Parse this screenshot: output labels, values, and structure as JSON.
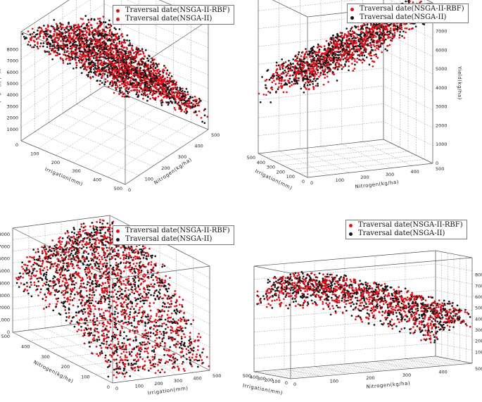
{
  "colors": {
    "rbf": "#e0101a",
    "nsga": "#151515",
    "grid": "#9a9a9a"
  },
  "legend": {
    "series_rbf": "Traversal date(NSGA-II-RBF)",
    "series_nsga": "Traversal date(NSGA-II)"
  },
  "chart_data": [
    {
      "type": "scatter",
      "panel": "top-left",
      "title": "",
      "zlabel": "Yield(kg/ha)",
      "xlabel": "Irrigation(mm)",
      "ylabel": "Nitrogen(kg/ha)",
      "zticks": [
        "1000",
        "2000",
        "3000",
        "4000",
        "5000",
        "6000",
        "7000",
        "8000"
      ],
      "zlim": [
        0,
        8500
      ],
      "xticks": [
        "500",
        "400",
        "300",
        "200",
        "100",
        "0"
      ],
      "yticks": [
        "0",
        "100",
        "200",
        "300",
        "400",
        "500"
      ],
      "series": [
        {
          "name": "Traversal date(NSGA-II-RBF)",
          "points": 1400
        },
        {
          "name": "Traversal date(NSGA-II)",
          "points": 1100
        }
      ]
    },
    {
      "type": "scatter",
      "panel": "top-right",
      "title": "",
      "zlabel": "Yield(kg/ha)",
      "xlabel": "Irrigation(mm)",
      "ylabel": "Nitrogen(kg/ha)",
      "zticks": [
        "0",
        "1000",
        "2000",
        "3000",
        "4000",
        "5000",
        "6000",
        "7000",
        "8000"
      ],
      "zlim": [
        0,
        8500
      ],
      "xticks": [
        "0",
        "100",
        "200",
        "300",
        "400",
        "500"
      ],
      "yticks": [
        "0",
        "100",
        "200",
        "300",
        "400",
        "500"
      ],
      "series": [
        {
          "name": "Traversal date(NSGA-II-RBF)",
          "points": 900
        },
        {
          "name": "Traversal date(NSGA-II)",
          "points": 700
        }
      ]
    },
    {
      "type": "scatter",
      "panel": "bottom-left",
      "title": "",
      "zlabel": "Yield(kg/ha)",
      "xlabel": "Nitrogen(kg/ha)",
      "ylabel": "Irrigation(mm)",
      "zticks": [
        "0",
        "1000",
        "2000",
        "3000",
        "4000",
        "5000",
        "6000",
        "7000",
        "8000"
      ],
      "zlim": [
        0,
        8500
      ],
      "xticks": [
        "0",
        "100",
        "200",
        "300",
        "400",
        "500"
      ],
      "yticks": [
        "0",
        "100",
        "200",
        "300",
        "400",
        "500"
      ],
      "series": [
        {
          "name": "Traversal date(NSGA-II-RBF)",
          "points": 1400
        },
        {
          "name": "Traversal date(NSGA-II)",
          "points": 1100
        }
      ]
    },
    {
      "type": "scatter",
      "panel": "bottom-right",
      "title": "",
      "zlabel": "Yield(kg/ha)",
      "xlabel": "Irrigation(mm)",
      "ylabel": "Nitrogen(kg/ha)",
      "zticks": [
        "1000",
        "2000",
        "3000",
        "4000",
        "5000",
        "6000",
        "7000",
        "8000"
      ],
      "zlim": [
        0,
        8500
      ],
      "xticks": [
        "0",
        "100",
        "200",
        "300",
        "400",
        "500"
      ],
      "yticks": [
        "0",
        "100",
        "200",
        "300",
        "400",
        "500"
      ],
      "series": [
        {
          "name": "Traversal date(NSGA-II-RBF)",
          "points": 900
        },
        {
          "name": "Traversal date(NSGA-II)",
          "points": 700
        }
      ]
    }
  ]
}
